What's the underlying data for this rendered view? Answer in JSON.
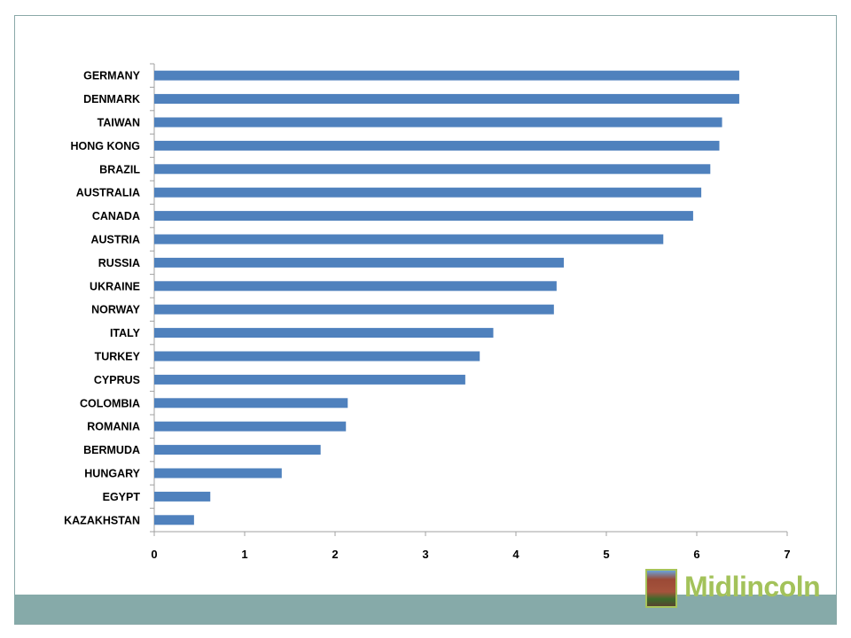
{
  "chart_data": {
    "type": "bar",
    "orientation": "horizontal",
    "title": "",
    "xlabel": "",
    "ylabel": "",
    "categories": [
      "GERMANY",
      "DENMARK",
      "TAIWAN",
      "HONG KONG",
      "BRAZIL",
      "AUSTRALIA",
      "CANADA",
      "AUSTRIA",
      "RUSSIA",
      "UKRAINE",
      "NORWAY",
      "ITALY",
      "TURKEY",
      "CYPRUS",
      "COLOMBIA",
      "ROMANIA",
      "BERMUDA",
      "HUNGARY",
      "EGYPT",
      "KAZAKHSTAN"
    ],
    "values": [
      6.47,
      6.47,
      6.28,
      6.25,
      6.15,
      6.05,
      5.96,
      5.63,
      4.53,
      4.45,
      4.42,
      3.75,
      3.6,
      3.44,
      2.14,
      2.12,
      1.84,
      1.41,
      0.62,
      0.44
    ],
    "xlim": [
      0,
      7
    ],
    "xticks": [
      "0",
      "1",
      "2",
      "3",
      "4",
      "5",
      "6",
      "7"
    ],
    "grid": false,
    "bar_color": "#4f81bd"
  },
  "logo": {
    "text": "Midlincoln"
  },
  "colors": {
    "band": "#86aaa9",
    "logo": "#a3c25a"
  }
}
